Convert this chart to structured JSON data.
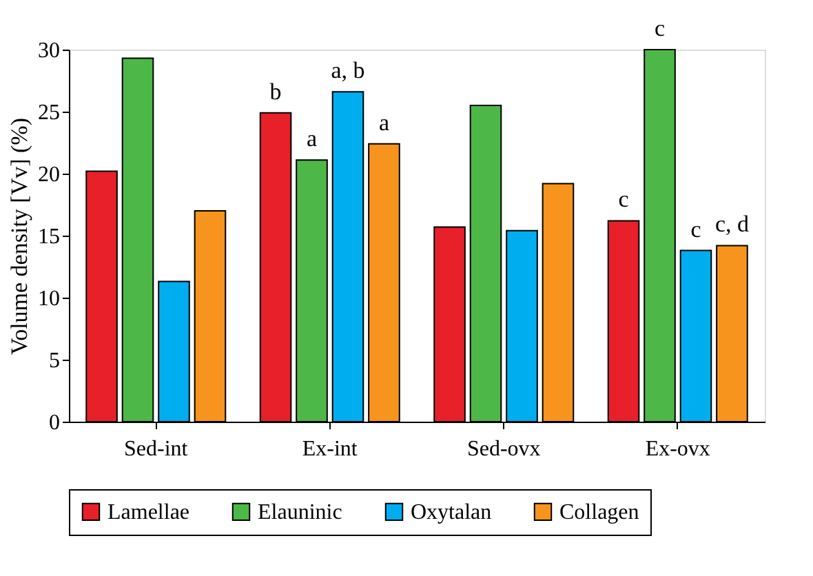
{
  "chart_data": {
    "type": "bar",
    "ylabel": "Volume density [Vv] (%)",
    "categories": [
      "Sed-int",
      "Ex-int",
      "Sed-ovx",
      "Ex-ovx"
    ],
    "series": [
      {
        "name": "Lamellae",
        "color": "#e8202a",
        "values": [
          20.2,
          24.9,
          15.7,
          16.2
        ]
      },
      {
        "name": "Elauninic",
        "color": "#4db848",
        "values": [
          29.3,
          21.1,
          25.5,
          30.0
        ]
      },
      {
        "name": "Oxytalan",
        "color": "#00aeef",
        "values": [
          11.3,
          26.6,
          15.4,
          13.8
        ]
      },
      {
        "name": "Collagen",
        "color": "#f7941d",
        "values": [
          17.0,
          22.4,
          19.2,
          14.2
        ]
      }
    ],
    "ylim": [
      0,
      30
    ],
    "yticks": [
      0,
      5,
      10,
      15,
      20,
      25,
      30
    ],
    "grid": false,
    "legend": "bottom",
    "annotations": [
      {
        "text": "b",
        "x": "Ex-int",
        "y": 24.9
      },
      {
        "text": "a",
        "x": "Ex-int",
        "y": 21.1
      },
      {
        "text": "a, b",
        "x": "Ex-int",
        "y": 26.6
      },
      {
        "text": "a",
        "x": "Ex-int",
        "y": 22.4
      },
      {
        "text": "c",
        "x": "Ex-ovx",
        "y": 16.2
      },
      {
        "text": "c",
        "x": "Ex-ovx",
        "y": 30.0
      },
      {
        "text": "c",
        "x": "Ex-ovx",
        "y": 13.8
      },
      {
        "text": "c, d",
        "x": "Ex-ovx",
        "y": 14.2
      }
    ]
  }
}
